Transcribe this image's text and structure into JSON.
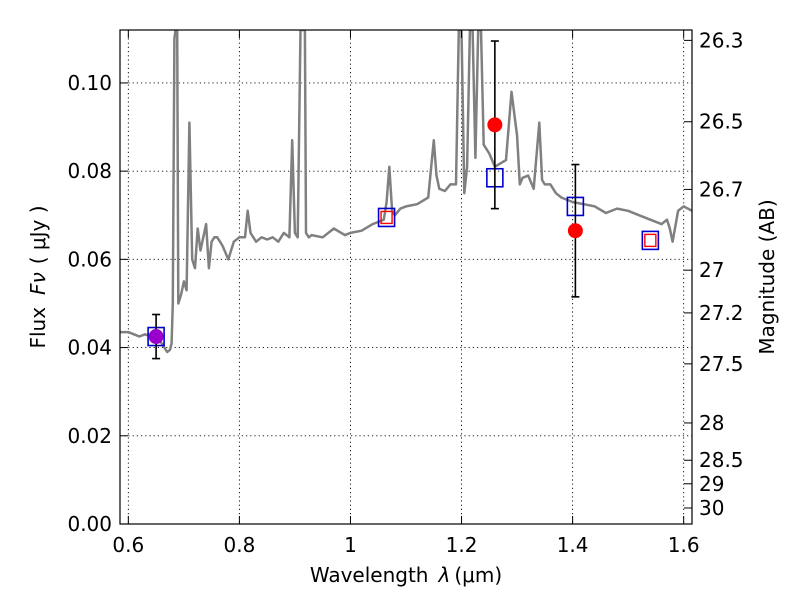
{
  "chart_data": {
    "type": "line",
    "xlabel": "Wavelength",
    "xlabel_symbol": "λ",
    "xlabel_unit": "(μm)",
    "ylabel": "Flux",
    "ylabel_symbol": "Fν",
    "ylabel_unit": "( μJy )",
    "y2label": "Magnitude (AB)",
    "xlim": [
      0.585,
      1.615
    ],
    "ylim": [
      0.0,
      0.112
    ],
    "grid": true,
    "x_ticks": [
      0.6,
      0.8,
      1.0,
      1.2,
      1.4,
      1.6
    ],
    "x_tick_labels": [
      "0.6",
      "0.8",
      "1",
      "1.2",
      "1.4",
      "1.6"
    ],
    "y_ticks": [
      0.0,
      0.02,
      0.04,
      0.06,
      0.08,
      0.1
    ],
    "y_tick_labels": [
      "0.00",
      "0.02",
      "0.04",
      "0.06",
      "0.08",
      "0.10"
    ],
    "y2_ticks": [
      26.3,
      26.5,
      26.7,
      27.0,
      27.2,
      27.5,
      28.0,
      28.5,
      29.0,
      30.0
    ],
    "y2_tick_labels": [
      "26.3",
      "26.5",
      "26.7",
      "27",
      "27.2",
      "27.5",
      "28",
      "28.5",
      "29",
      "30"
    ],
    "series": [
      {
        "kind": "line",
        "color": "#808080",
        "x": [
          0.585,
          0.6,
          0.61,
          0.62,
          0.63,
          0.64,
          0.65,
          0.66,
          0.665,
          0.67,
          0.675,
          0.678,
          0.68,
          0.683,
          0.685,
          0.688,
          0.69,
          0.695,
          0.7,
          0.705,
          0.71,
          0.715,
          0.72,
          0.725,
          0.73,
          0.735,
          0.74,
          0.745,
          0.75,
          0.755,
          0.76,
          0.765,
          0.77,
          0.78,
          0.79,
          0.8,
          0.81,
          0.815,
          0.82,
          0.825,
          0.83,
          0.84,
          0.85,
          0.86,
          0.87,
          0.88,
          0.89,
          0.895,
          0.9,
          0.905,
          0.91,
          0.915,
          0.918,
          0.92,
          0.925,
          0.93,
          0.95,
          0.97,
          0.99,
          1.0,
          1.02,
          1.04,
          1.06,
          1.065,
          1.07,
          1.075,
          1.08,
          1.09,
          1.1,
          1.12,
          1.14,
          1.15,
          1.155,
          1.16,
          1.17,
          1.18,
          1.19,
          1.195,
          1.2,
          1.205,
          1.21,
          1.215,
          1.22,
          1.225,
          1.23,
          1.235,
          1.24,
          1.25,
          1.26,
          1.28,
          1.29,
          1.3,
          1.305,
          1.31,
          1.32,
          1.33,
          1.34,
          1.345,
          1.35,
          1.36,
          1.37,
          1.38,
          1.4,
          1.42,
          1.44,
          1.46,
          1.48,
          1.5,
          1.52,
          1.54,
          1.56,
          1.57,
          1.575,
          1.58,
          1.59,
          1.6,
          1.615
        ],
        "y": [
          0.0435,
          0.0435,
          0.043,
          0.0425,
          0.043,
          0.0425,
          0.042,
          0.041,
          0.04,
          0.039,
          0.0395,
          0.041,
          0.05,
          0.11,
          0.112,
          0.112,
          0.05,
          0.052,
          0.055,
          0.053,
          0.091,
          0.06,
          0.058,
          0.067,
          0.062,
          0.065,
          0.068,
          0.058,
          0.064,
          0.065,
          0.065,
          0.064,
          0.063,
          0.06,
          0.064,
          0.065,
          0.065,
          0.071,
          0.066,
          0.065,
          0.064,
          0.065,
          0.0645,
          0.065,
          0.064,
          0.066,
          0.065,
          0.087,
          0.066,
          0.065,
          0.112,
          0.112,
          0.112,
          0.066,
          0.065,
          0.0655,
          0.065,
          0.067,
          0.0655,
          0.066,
          0.0665,
          0.068,
          0.069,
          0.073,
          0.081,
          0.071,
          0.07,
          0.0715,
          0.072,
          0.0725,
          0.074,
          0.087,
          0.079,
          0.076,
          0.0755,
          0.077,
          0.077,
          0.112,
          0.112,
          0.075,
          0.081,
          0.112,
          0.112,
          0.083,
          0.112,
          0.112,
          0.086,
          0.084,
          0.081,
          0.0825,
          0.098,
          0.088,
          0.077,
          0.0785,
          0.079,
          0.076,
          0.091,
          0.078,
          0.077,
          0.077,
          0.075,
          0.074,
          0.073,
          0.0725,
          0.072,
          0.0705,
          0.0715,
          0.071,
          0.07,
          0.069,
          0.068,
          0.069,
          0.067,
          0.064,
          0.071,
          0.072,
          0.071
        ]
      },
      {
        "kind": "points",
        "marker": "square",
        "color": "#0000cc",
        "x": [
          0.65,
          1.065,
          1.26,
          1.405,
          1.54
        ],
        "y": [
          0.0425,
          0.0695,
          0.0785,
          0.072,
          0.0643
        ]
      },
      {
        "kind": "points",
        "marker": "circle-errorbar",
        "color": "#ff0000",
        "x": [
          0.65,
          1.26,
          1.405
        ],
        "y": [
          0.0425,
          0.0905,
          0.0665
        ],
        "err": [
          0.005,
          0.019,
          0.015
        ]
      },
      {
        "kind": "points",
        "marker": "small-square",
        "color": "#ff0000",
        "x": [
          1.065,
          1.54
        ],
        "y": [
          0.0695,
          0.0643
        ]
      }
    ],
    "overlap_marker_color": "#9900cc"
  }
}
